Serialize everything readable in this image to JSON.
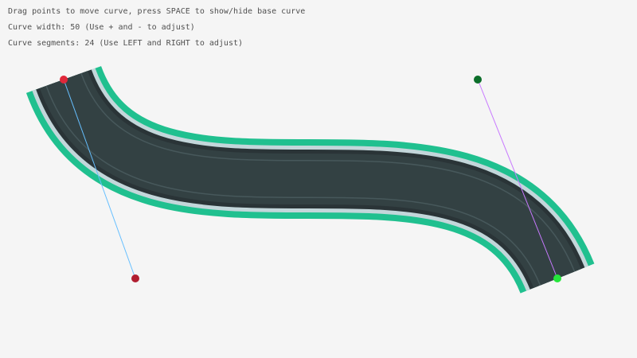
{
  "info": {
    "line1": "Drag points to move curve, press SPACE to show/hide base curve",
    "line2": "Curve width: 50 (Use + and - to adjust)",
    "line3": "Curve segments: 24 (Use LEFT and RIGHT to adjust)"
  },
  "curve": {
    "width": 50,
    "segments": 24,
    "colors": {
      "border": "#20c08f",
      "edge": "#c3d6da",
      "shoulder": "#2a3437",
      "road": "#334143",
      "lane": "#46575a",
      "startHandle": "#e0283a",
      "startControl": "#b01e30",
      "endControl": "#0c6e2a",
      "endHandle": "#25e63c",
      "startLine": "#66bfff",
      "endLine": "#c87aff"
    }
  }
}
